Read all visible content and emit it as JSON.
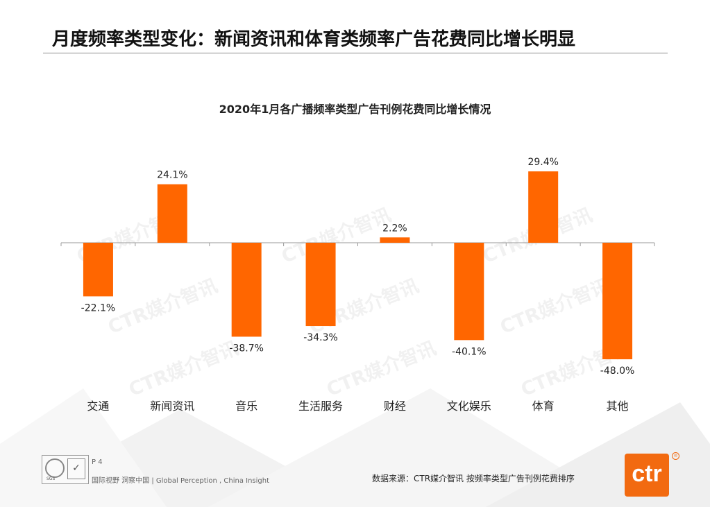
{
  "page": {
    "title": "月度频率类型变化：新闻资讯和体育类频率广告花费同比增长明显"
  },
  "watermark_text": "CTR媒介智讯",
  "chart_data": {
    "type": "bar",
    "title": "2020年1月各广播频率类型广告刊例花费同比增长情况",
    "categories": [
      "交通",
      "新闻资讯",
      "音乐",
      "生活服务",
      "财经",
      "文化娱乐",
      "体育",
      "其他"
    ],
    "values": [
      -22.1,
      24.1,
      -38.7,
      -34.3,
      2.2,
      -40.1,
      29.4,
      -48.0
    ],
    "value_labels": [
      "-22.1%",
      "24.1%",
      "-38.7%",
      "-34.3%",
      "2.2%",
      "-40.1%",
      "29.4%",
      "-48.0%"
    ],
    "unit": "%",
    "xlabel": "",
    "ylabel": "",
    "ylim": [
      -48.0,
      29.4
    ],
    "grid": false,
    "legend": "none",
    "bar_color": "#ff6600"
  },
  "footer": {
    "page_number": "P 4",
    "tagline": "国际视野  洞察中国 |  Global  Perception , China  Insight",
    "source": "数据来源：CTR媒介智讯   按频率类型广告刊例花费排序",
    "logo_text": "ctr",
    "logo_mark": "®",
    "cert_sgs": "SGS",
    "cert_check": "✓"
  }
}
